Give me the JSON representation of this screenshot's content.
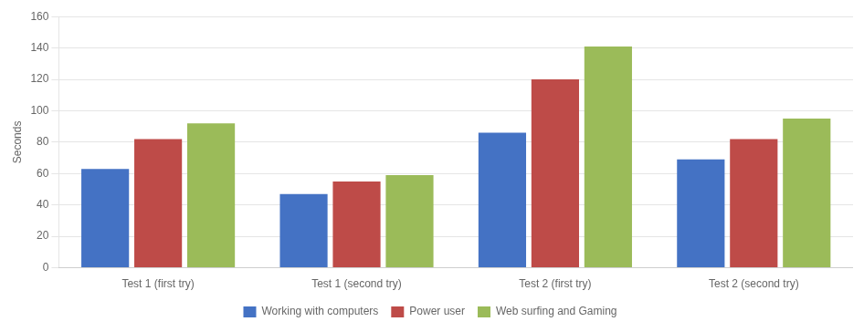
{
  "chart_data": {
    "type": "bar",
    "categories": [
      "Test 1 (first try)",
      "Test 1 (second try)",
      "Test 2 (first try)",
      "Test 2 (second try)"
    ],
    "series": [
      {
        "name": "Working with computers",
        "color": "#4472C4",
        "values": [
          63,
          47,
          86,
          69
        ]
      },
      {
        "name": "Power user",
        "color": "#BE4B48",
        "values": [
          82,
          55,
          120,
          82
        ]
      },
      {
        "name": "Web surfing and Gaming",
        "color": "#9BBB59",
        "values": [
          92,
          59,
          141,
          95
        ]
      }
    ],
    "ylabel": "Seconds",
    "ylim": [
      0,
      160
    ],
    "yticks": [
      0,
      20,
      40,
      60,
      80,
      100,
      120,
      140,
      160
    ],
    "grid": true,
    "legend": "bottom"
  }
}
